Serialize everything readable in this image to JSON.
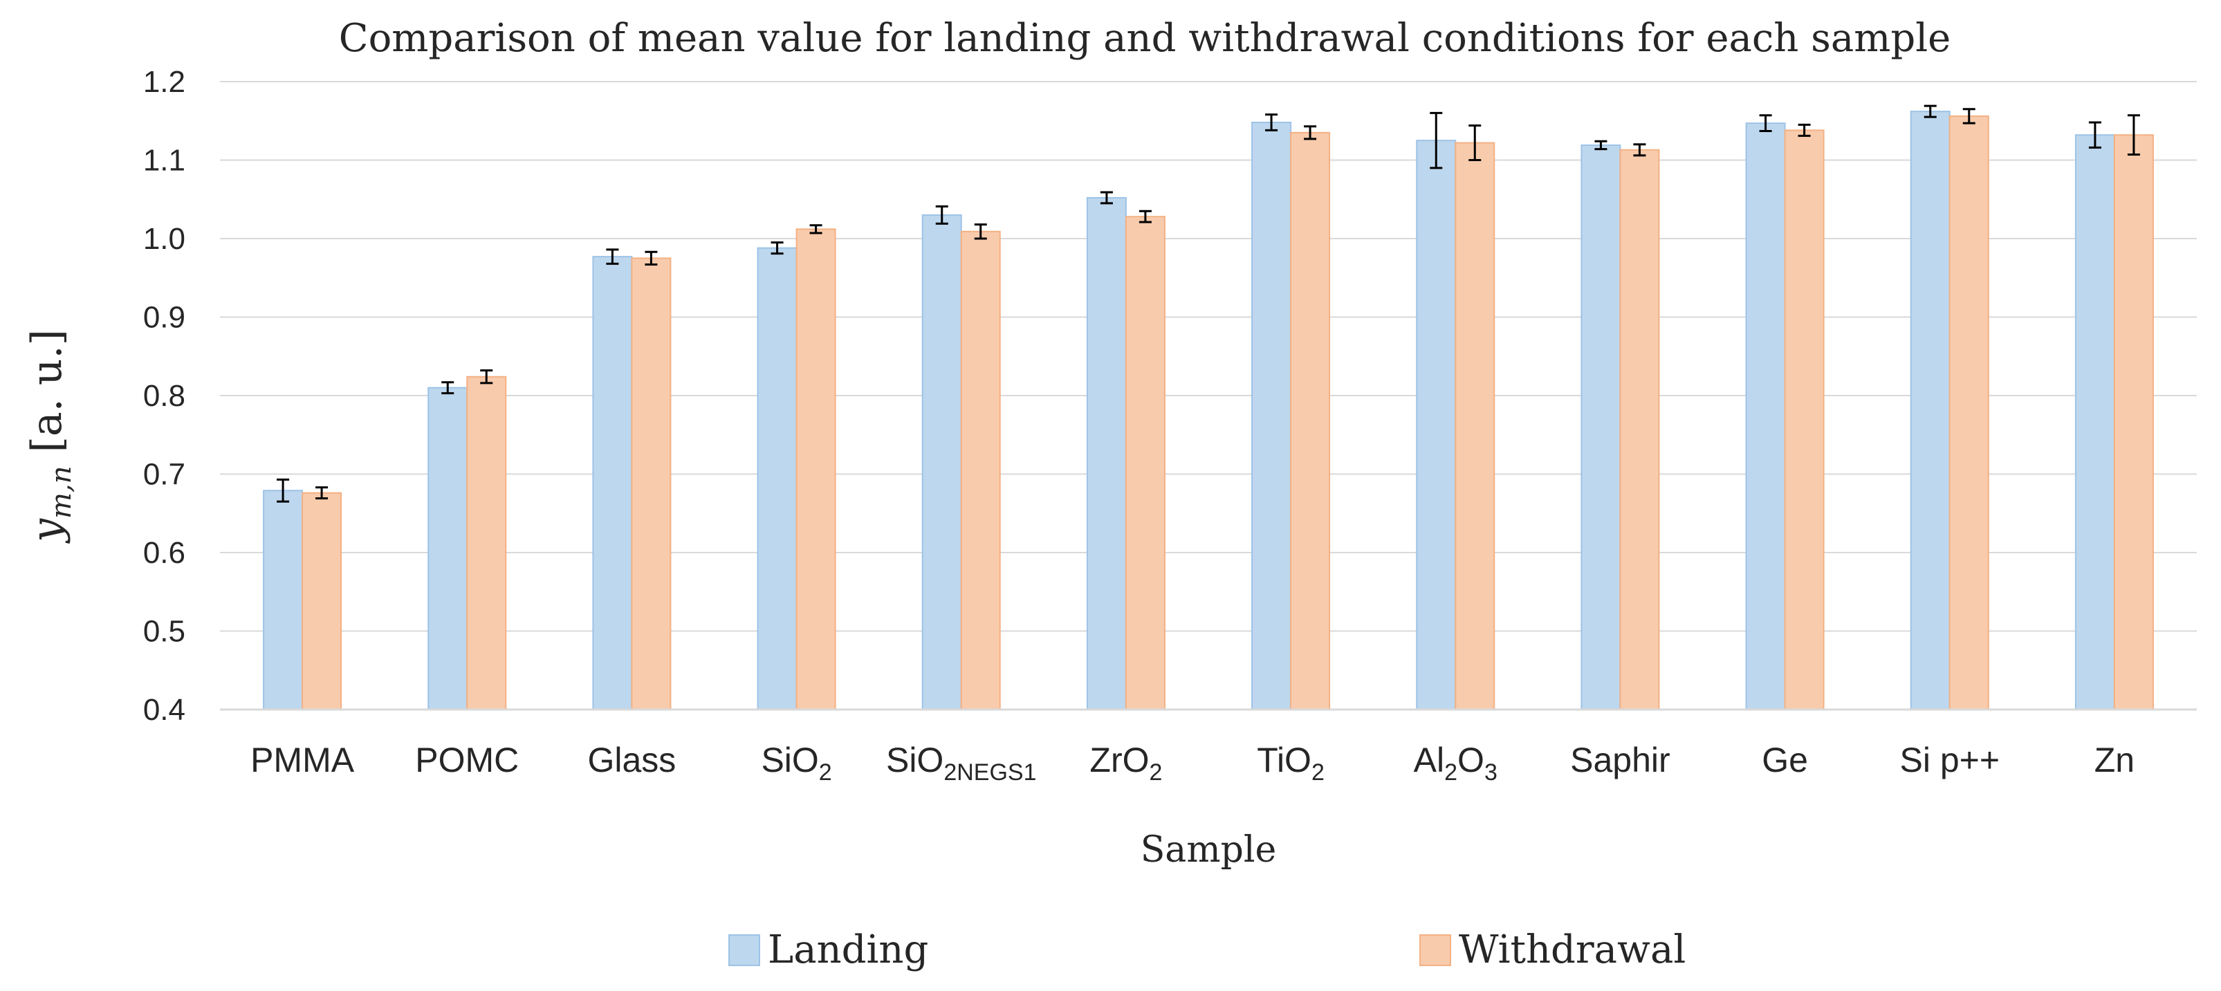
{
  "chart_data": {
    "type": "bar",
    "title": "Comparison of mean value for landing and withdrawal conditions for each sample",
    "xlabel": "Sample",
    "ylabel": {
      "main": "y",
      "sub": "m,n",
      "unit": " [a. u.]"
    },
    "ylim": [
      0.4,
      1.2
    ],
    "yticks": [
      "0.4",
      "0.5",
      "0.6",
      "0.7",
      "0.8",
      "0.9",
      "1.0",
      "1.1",
      "1.2"
    ],
    "grid": true,
    "legend_position": "bottom",
    "categories": [
      {
        "main": "PMMA",
        "sub": ""
      },
      {
        "main": "POMC",
        "sub": ""
      },
      {
        "main": "Glass",
        "sub": ""
      },
      {
        "main": "SiO",
        "sub": "2"
      },
      {
        "main": "SiO",
        "sub": "2NEGS1"
      },
      {
        "main": "ZrO",
        "sub": "2"
      },
      {
        "main": "TiO",
        "sub": "2"
      },
      {
        "main": "Al",
        "sub": "2",
        "main2": "O",
        "sub2": "3"
      },
      {
        "main": "Saphir",
        "sub": ""
      },
      {
        "main": "Ge",
        "sub": ""
      },
      {
        "main": "Si p++",
        "sub": ""
      },
      {
        "main": "Zn",
        "sub": ""
      }
    ],
    "series": [
      {
        "name": "Landing",
        "color": "#BDD7EE",
        "border": "#9DC3E6",
        "values": [
          0.679,
          0.81,
          0.977,
          0.988,
          1.03,
          1.052,
          1.148,
          1.125,
          1.119,
          1.147,
          1.162,
          1.132
        ],
        "errors": [
          0.014,
          0.007,
          0.009,
          0.007,
          0.011,
          0.007,
          0.01,
          0.035,
          0.005,
          0.01,
          0.007,
          0.016
        ]
      },
      {
        "name": "Withdrawal",
        "color": "#F8CBAD",
        "border": "#F4B183",
        "values": [
          0.676,
          0.824,
          0.975,
          1.012,
          1.009,
          1.028,
          1.135,
          1.122,
          1.113,
          1.138,
          1.156,
          1.132
        ],
        "errors": [
          0.007,
          0.008,
          0.008,
          0.005,
          0.009,
          0.007,
          0.008,
          0.022,
          0.007,
          0.007,
          0.009,
          0.025
        ]
      }
    ]
  }
}
